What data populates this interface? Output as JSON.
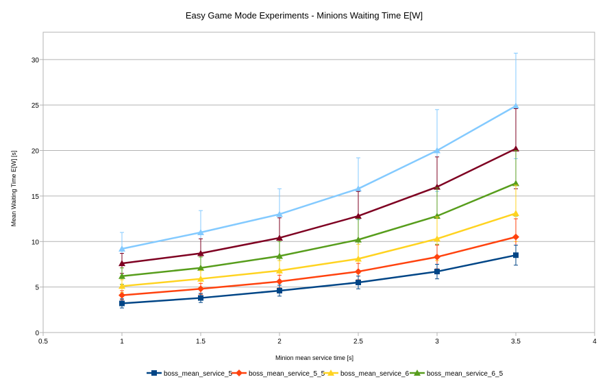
{
  "chart_data": {
    "type": "line",
    "title": "Easy Game Mode Experiments - Minions Waiting Time E[W]",
    "xlabel": "Minion mean service time [s]",
    "ylabel": "Mean Waiting Time E[W] [s]",
    "xlim": [
      0.5,
      4
    ],
    "ylim": [
      0,
      33
    ],
    "xticks": [
      "0.5",
      "1",
      "1.5",
      "2",
      "2.5",
      "3",
      "3.5",
      "4"
    ],
    "yticks": [
      "0",
      "5",
      "10",
      "15",
      "20",
      "25",
      "30"
    ],
    "x": [
      1,
      1.5,
      2,
      2.5,
      3,
      3.5
    ],
    "grid": "horizontal",
    "legend_position": "bottom",
    "series": [
      {
        "name": "boss_mean_service_5",
        "color": "#004586",
        "marker": "square",
        "values": [
          3.2,
          3.8,
          4.6,
          5.5,
          6.7,
          8.5
        ],
        "error": [
          0.5,
          0.5,
          0.6,
          0.7,
          0.8,
          1.1
        ],
        "in_legend": true
      },
      {
        "name": "boss_mean_service_5_5",
        "color": "#ff420e",
        "marker": "diamond",
        "values": [
          4.1,
          4.8,
          5.6,
          6.7,
          8.3,
          10.5
        ],
        "error": [
          0.5,
          0.6,
          0.7,
          0.9,
          1.3,
          2.0
        ],
        "in_legend": true
      },
      {
        "name": "boss_mean_service_6",
        "color": "#ffd320",
        "marker": "triangle",
        "values": [
          5.1,
          5.9,
          6.8,
          8.1,
          10.3,
          13.1
        ],
        "error": [
          0.7,
          0.9,
          1.1,
          1.6,
          2.4,
          3.1
        ],
        "in_legend": true
      },
      {
        "name": "boss_mean_service_6_5",
        "color": "#579d1c",
        "marker": "triangle",
        "values": [
          6.2,
          7.1,
          8.4,
          10.2,
          12.8,
          16.4
        ],
        "error": [
          0.9,
          1.2,
          1.6,
          2.3,
          3.1,
          3.6
        ],
        "in_legend": true
      },
      {
        "name": "",
        "color": "#7e0021",
        "marker": "triangle",
        "values": [
          7.6,
          8.7,
          10.4,
          12.8,
          16.0,
          20.2
        ],
        "error": [
          1.1,
          1.6,
          2.2,
          2.7,
          3.3,
          4.4
        ],
        "in_legend": false
      },
      {
        "name": "",
        "color": "#83caff",
        "marker": "triangle",
        "values": [
          9.2,
          11.0,
          13.0,
          15.8,
          20.0,
          24.9
        ],
        "error": [
          1.8,
          2.4,
          2.8,
          3.4,
          4.5,
          5.8
        ],
        "in_legend": false
      }
    ]
  }
}
